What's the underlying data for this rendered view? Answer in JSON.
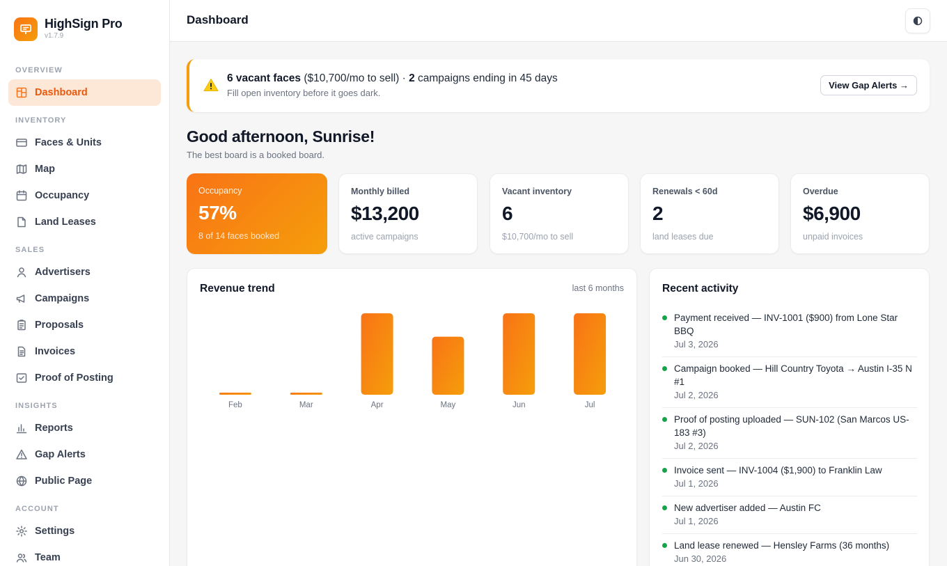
{
  "brand": {
    "name": "HighSign Pro",
    "version": "v1.7.9"
  },
  "sidebar": {
    "sections": [
      {
        "label": "OVERVIEW",
        "items": [
          {
            "label": "Dashboard",
            "icon": "grid-icon",
            "active": true
          }
        ]
      },
      {
        "label": "INVENTORY",
        "items": [
          {
            "label": "Faces & Units",
            "icon": "billboard-icon"
          },
          {
            "label": "Map",
            "icon": "map-icon"
          },
          {
            "label": "Occupancy",
            "icon": "calendar-icon"
          },
          {
            "label": "Land Leases",
            "icon": "file-icon"
          }
        ]
      },
      {
        "label": "SALES",
        "items": [
          {
            "label": "Advertisers",
            "icon": "user-icon"
          },
          {
            "label": "Campaigns",
            "icon": "megaphone-icon"
          },
          {
            "label": "Proposals",
            "icon": "clipboard-icon"
          },
          {
            "label": "Invoices",
            "icon": "invoice-icon"
          },
          {
            "label": "Proof of Posting",
            "icon": "check-square-icon"
          }
        ]
      },
      {
        "label": "INSIGHTS",
        "items": [
          {
            "label": "Reports",
            "icon": "bar-chart-icon"
          },
          {
            "label": "Gap Alerts",
            "icon": "warning-icon"
          },
          {
            "label": "Public Page",
            "icon": "globe-icon"
          }
        ]
      },
      {
        "label": "ACCOUNT",
        "items": [
          {
            "label": "Settings",
            "icon": "gear-icon"
          },
          {
            "label": "Team",
            "icon": "users-icon"
          }
        ]
      }
    ]
  },
  "header": {
    "title": "Dashboard",
    "theme_toggle_icon": "contrast-icon"
  },
  "alert": {
    "count": "6 vacant faces",
    "amount": "($10,700/mo to sell)",
    "separator": " · ",
    "campaigns_count": "2",
    "campaigns_text": " campaigns ending in 45 days",
    "subtext": "Fill open inventory before it goes dark.",
    "button_label": "View Gap Alerts →",
    "accent": "#f59e0b"
  },
  "greeting": {
    "title": "Good afternoon, Sunrise!",
    "subtitle": "The best board is a booked board."
  },
  "stats": [
    {
      "label": "Occupancy",
      "value": "57%",
      "sub": "8 of 14 faces booked"
    },
    {
      "label": "Monthly billed",
      "value": "$13,200",
      "sub": "active campaigns"
    },
    {
      "label": "Vacant inventory",
      "value": "6",
      "sub": "$10,700/mo to sell"
    },
    {
      "label": "Renewals < 60d",
      "value": "2",
      "sub": "land leases due"
    },
    {
      "label": "Overdue",
      "value": "$6,900",
      "sub": "unpaid invoices"
    }
  ],
  "revenue": {
    "title": "Revenue trend",
    "range": "last 6 months",
    "chart_data": {
      "type": "bar",
      "categories": [
        "Feb",
        "Mar",
        "Apr",
        "May",
        "Jun",
        "Jul"
      ],
      "values": [
        0,
        0,
        13200,
        9400,
        13200,
        13200
      ],
      "ylim": [
        0,
        13200
      ],
      "grid": false,
      "colors": [
        "#f97316",
        "#f59e0b"
      ]
    }
  },
  "activity": {
    "title": "Recent activity",
    "items": [
      {
        "text": "Payment received — INV-1001 ($900) from Lone Star BBQ",
        "date": "Jul 3, 2026"
      },
      {
        "text": "Campaign booked — Hill Country Toyota → Austin I-35 N #1",
        "date": "Jul 2, 2026"
      },
      {
        "text": "Proof of posting uploaded — SUN-102 (San Marcos US-183 #3)",
        "date": "Jul 2, 2026"
      },
      {
        "text": "Invoice sent — INV-1004 ($1,900) to Franklin Law",
        "date": "Jul 1, 2026"
      },
      {
        "text": "New advertiser added — Austin FC",
        "date": "Jul 1, 2026"
      },
      {
        "text": "Land lease renewed — Hensley Farms (36 months)",
        "date": "Jun 30, 2026"
      }
    ],
    "dot_color": "#16a34a"
  }
}
